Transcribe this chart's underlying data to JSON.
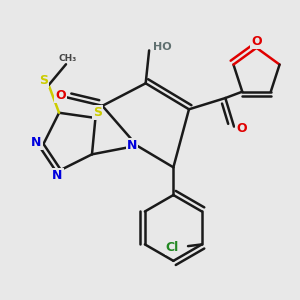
{
  "bg_color": "#e8e8e8",
  "bond_color": "#1a1a1a",
  "bond_width": 1.8,
  "atom_colors": {
    "O": "#e00000",
    "N": "#0000dd",
    "S": "#cccc00",
    "Cl": "#228822",
    "H": "#607070",
    "C": "#1a1a1a"
  },
  "font_size": 8.0
}
